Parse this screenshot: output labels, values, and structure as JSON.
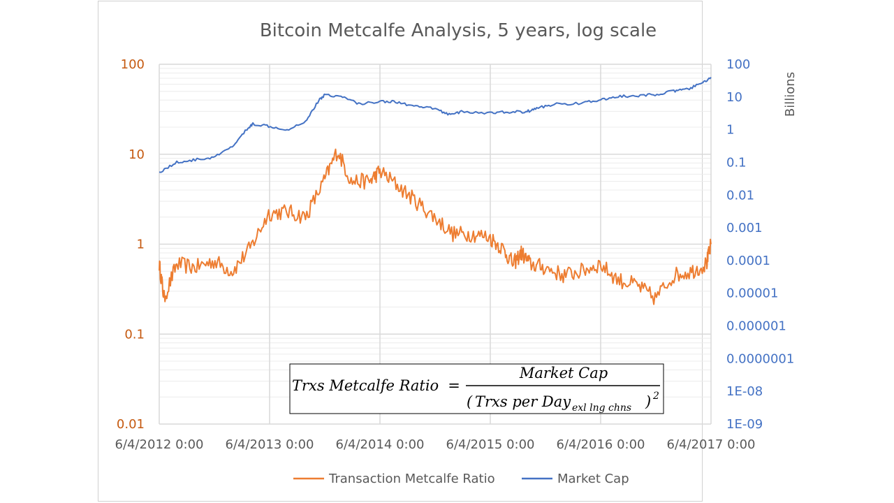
{
  "chart_data": {
    "type": "line",
    "title": "Bitcoin Metcalfe Analysis, 5 years, log scale",
    "y_scale": "log",
    "y2_scale": "log",
    "ylim": [
      0.01,
      100
    ],
    "y2lim": [
      1e-09,
      100
    ],
    "y2label": "Billions",
    "grid": "on",
    "legend_placement": "bottom",
    "colors": {
      "metcalfe": "#ed7d31",
      "marketcap": "#4472c4",
      "left_axis": "#c55a11",
      "right_axis": "#4472c4"
    },
    "x_ticks": [
      "6/4/2012 0:00",
      "6/4/2013 0:00",
      "6/4/2014 0:00",
      "6/4/2015 0:00",
      "6/4/2016 0:00",
      "6/4/2017 0:00"
    ],
    "y_ticks": [
      "100",
      "10",
      "1",
      "0.1",
      "0.01"
    ],
    "y2_ticks": [
      "100",
      "10",
      "1",
      "0.1",
      "0.01",
      "0.001",
      "0.0001",
      "0.00001",
      "0.000001",
      "0.0000001",
      "1E-08",
      "1E-09"
    ],
    "x_range": [
      "2012-06-04",
      "2017-06-04"
    ],
    "series": [
      {
        "name": "Transaction Metcalfe Ratio",
        "axis": "left",
        "x": [
          "2012-06-04",
          "2012-06-20",
          "2012-08-01",
          "2012-10-01",
          "2012-12-01",
          "2013-02-01",
          "2013-04-01",
          "2013-06-01",
          "2013-08-01",
          "2013-10-01",
          "2013-12-01",
          "2014-01-15",
          "2014-03-01",
          "2014-05-01",
          "2014-06-04",
          "2014-08-01",
          "2014-10-01",
          "2014-12-01",
          "2015-02-01",
          "2015-04-01",
          "2015-06-01",
          "2015-07-15",
          "2015-08-20",
          "2015-09-15",
          "2015-10-15",
          "2015-12-01",
          "2016-02-01",
          "2016-04-01",
          "2016-06-01",
          "2016-08-01",
          "2016-10-01",
          "2016-12-01",
          "2017-02-01",
          "2017-04-01",
          "2017-05-20",
          "2017-06-04"
        ],
        "values": [
          0.6,
          0.25,
          0.6,
          0.55,
          0.65,
          0.5,
          0.9,
          2.2,
          2.3,
          2.0,
          5.0,
          11.0,
          5.0,
          5.0,
          6.5,
          4.5,
          3.0,
          2.0,
          1.3,
          1.3,
          1.2,
          0.9,
          0.6,
          0.8,
          0.6,
          0.55,
          0.45,
          0.5,
          0.6,
          0.4,
          0.35,
          0.25,
          0.45,
          0.5,
          0.6,
          1.0
        ]
      },
      {
        "name": "Market Cap",
        "axis": "right",
        "x": [
          "2012-06-04",
          "2012-08-01",
          "2012-10-01",
          "2012-12-01",
          "2013-02-01",
          "2013-03-20",
          "2013-04-10",
          "2013-06-01",
          "2013-08-01",
          "2013-10-01",
          "2013-11-15",
          "2013-12-05",
          "2014-02-01",
          "2014-04-01",
          "2014-06-04",
          "2014-08-01",
          "2014-10-01",
          "2014-12-01",
          "2015-01-15",
          "2015-03-01",
          "2015-06-04",
          "2015-08-01",
          "2015-10-01",
          "2015-11-05",
          "2016-01-01",
          "2016-04-01",
          "2016-06-04",
          "2016-08-01",
          "2016-10-01",
          "2016-12-01",
          "2017-02-01",
          "2017-03-15",
          "2017-05-01",
          "2017-06-04"
        ],
        "values": [
          0.05,
          0.1,
          0.12,
          0.14,
          0.3,
          1.0,
          1.5,
          1.3,
          1.0,
          1.8,
          8.0,
          12.0,
          10.0,
          6.0,
          7.5,
          7.0,
          5.0,
          4.5,
          3.0,
          3.5,
          3.2,
          3.5,
          3.5,
          4.5,
          6.0,
          6.5,
          8.0,
          10.5,
          10.5,
          12.0,
          15.0,
          17.0,
          25.0,
          40.0
        ]
      }
    ]
  },
  "formula": {
    "lhs": "Trxs Metcalfe Ratio",
    "eq": "=",
    "numerator": "Market Cap",
    "denominator": "Trxs per Day",
    "subscript": "exl lng chns",
    "exponent": "2"
  }
}
